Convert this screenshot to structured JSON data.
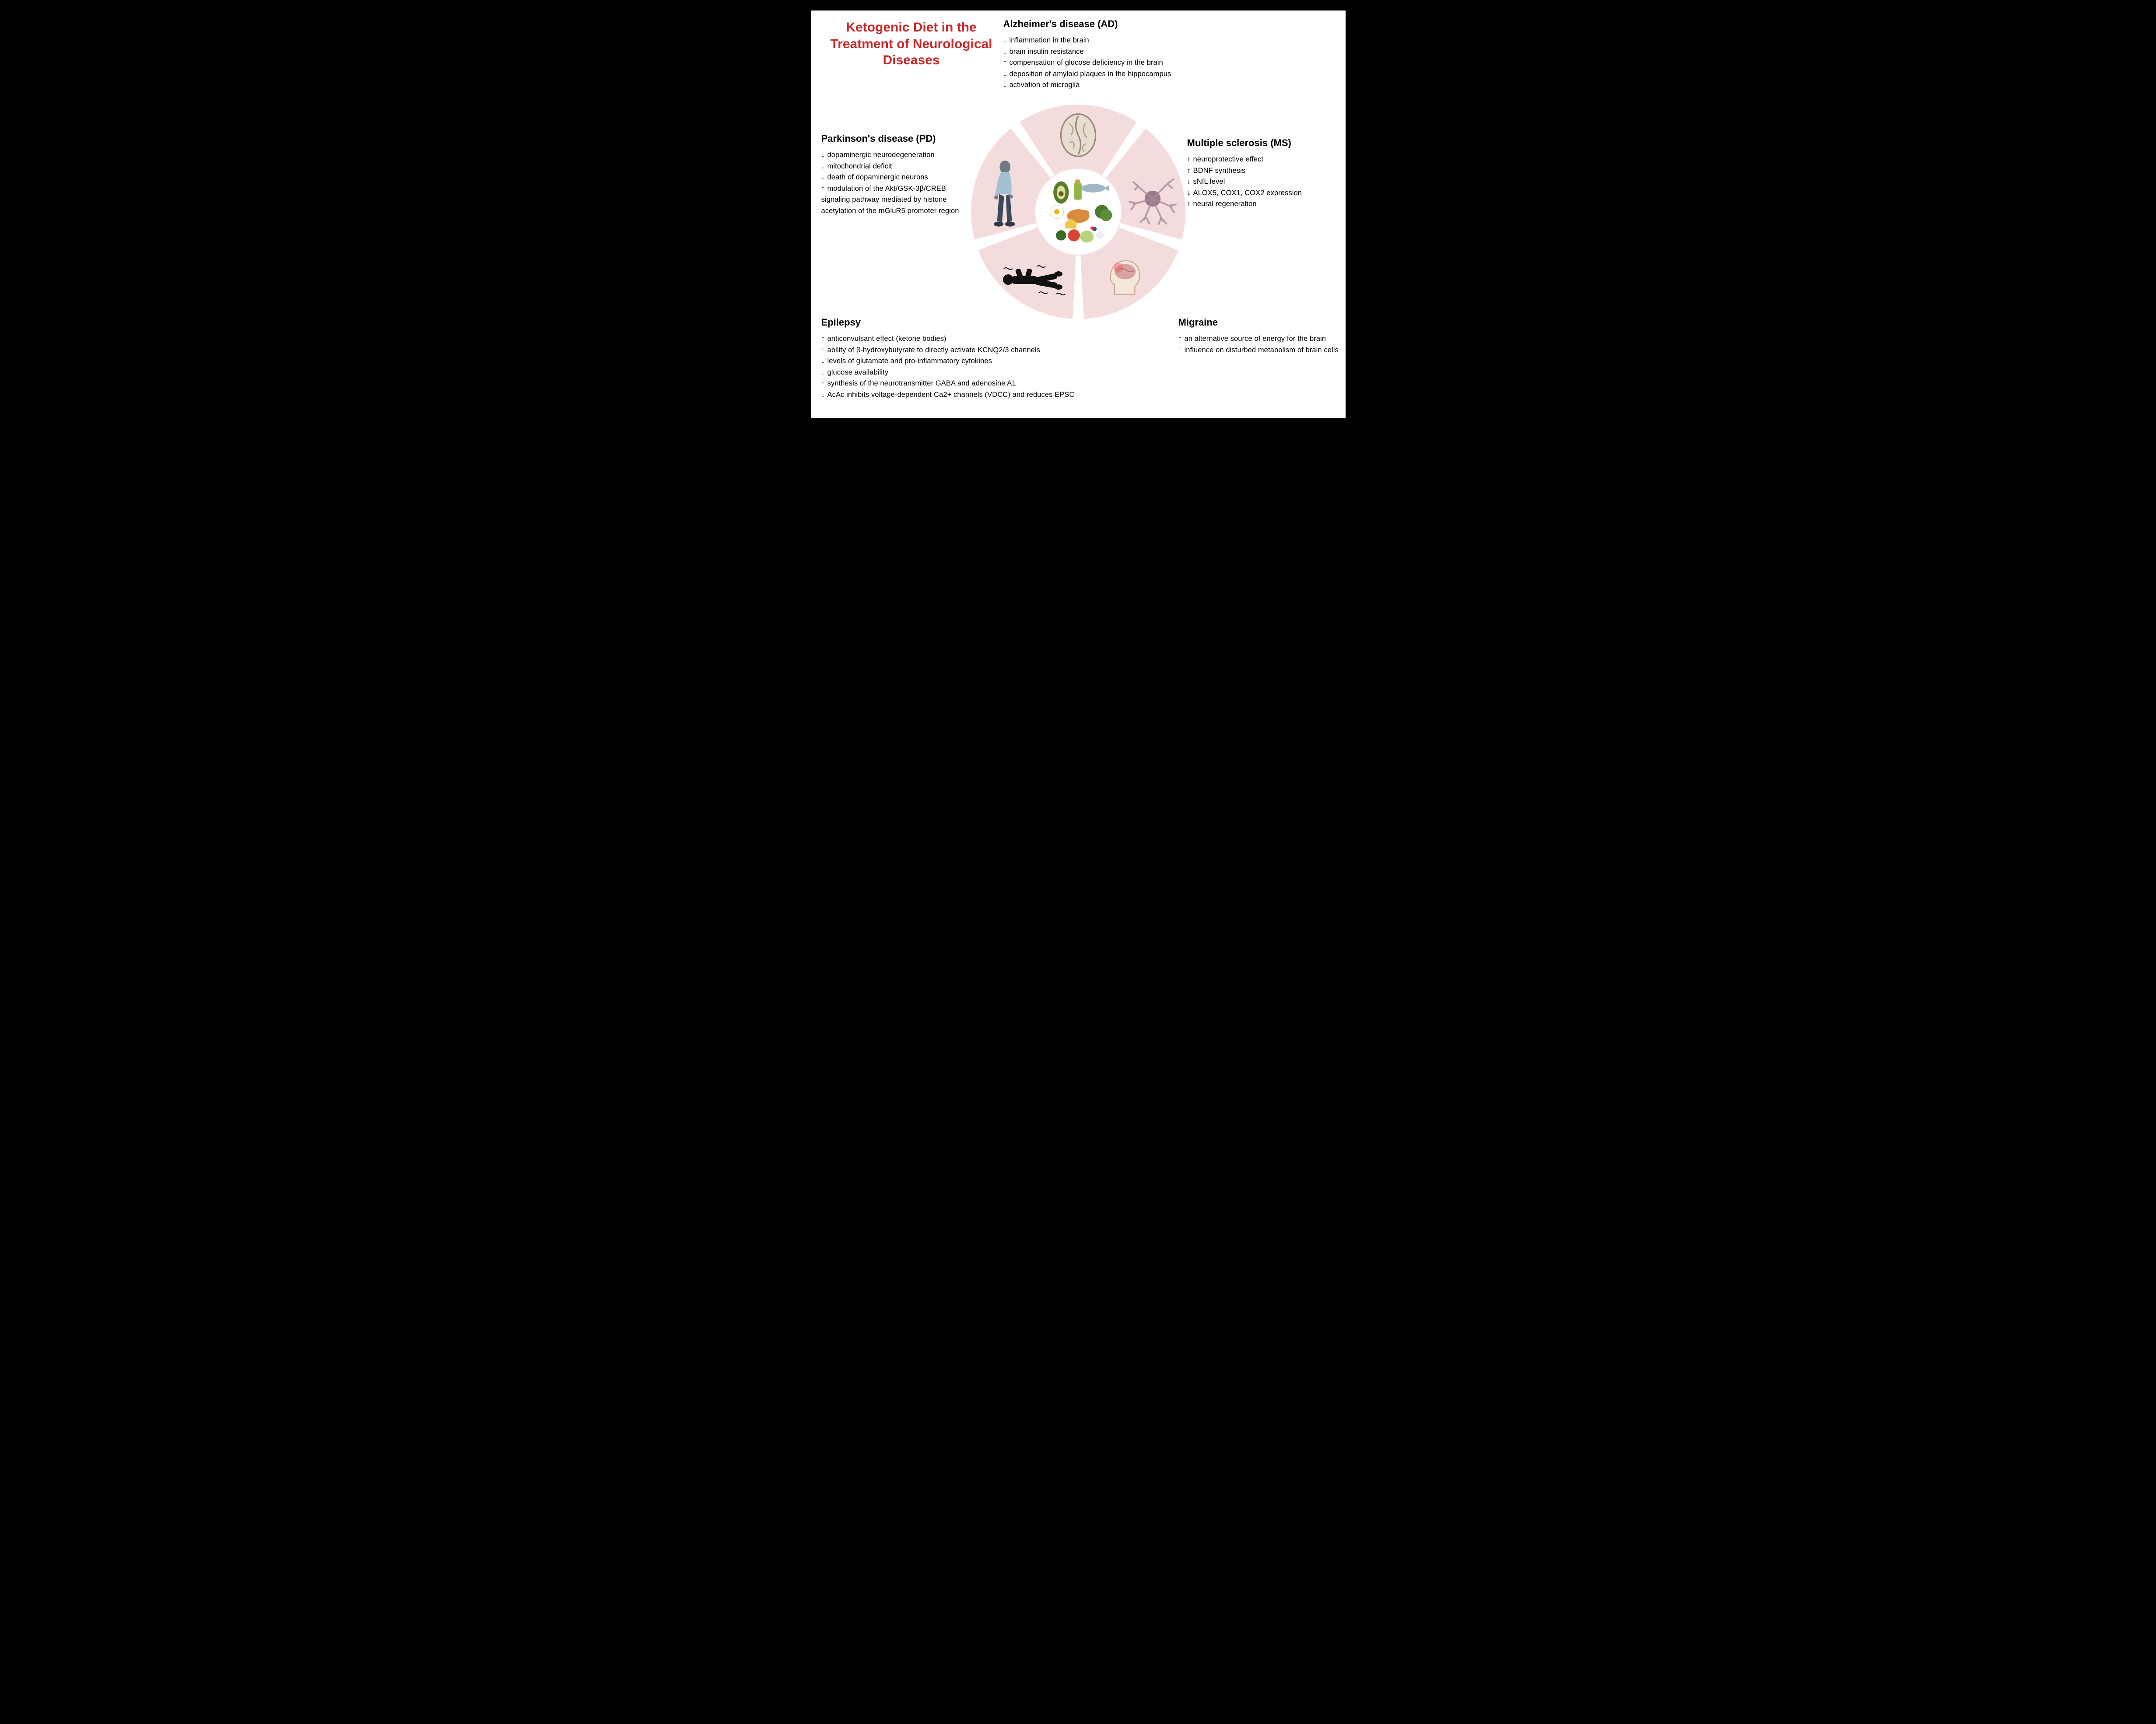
{
  "title": {
    "text": "Ketogenic Diet in the Treatment of Neurological  Diseases",
    "color": "#c62828",
    "fontsize": 30
  },
  "wheel": {
    "segment_fill": "#f4dcdc",
    "gap_color": "#ffffff",
    "center_fill": "#ffffff",
    "outer_radius": 245,
    "inner_radius": 100,
    "gap_deg": 6,
    "segments": 5
  },
  "icons": {
    "brain_slice": "brain-slice-icon",
    "neuron": "neuron-icon",
    "head_brain": "head-brain-icon",
    "seizure_person": "seizure-person-icon",
    "elderly_man": "parkinson-man-icon",
    "food": "keto-food-icon"
  },
  "sections": {
    "alzheimer": {
      "heading": "Alzheimer's disease (AD)",
      "items": [
        {
          "dir": "down",
          "text": "inflammation in the brain"
        },
        {
          "dir": "down",
          "text": "brain insulin resistance"
        },
        {
          "dir": "up",
          "text": "compensation of glucose deficiency in the brain"
        },
        {
          "dir": "down",
          "text": "deposition of amyloid plaques in the hippocampus"
        },
        {
          "dir": "down",
          "text": "activation of microglia"
        }
      ]
    },
    "parkinson": {
      "heading": "Parkinson's disease (PD)",
      "items": [
        {
          "dir": "down",
          "text": "dopaminergic neurodegeneration"
        },
        {
          "dir": "down",
          "text": "mitochondrial deficit"
        },
        {
          "dir": "down",
          "text": "death of dopaminergic neurons"
        },
        {
          "dir": "up",
          "text": "modulation of the Akt/GSK-3β/CREB signaling pathway mediated by histone acetylation of the mGluR5 promoter region"
        }
      ]
    },
    "ms": {
      "heading": "Multiple sclerosis (MS)",
      "items": [
        {
          "dir": "up",
          "text": "neuroprotective effect"
        },
        {
          "dir": "up",
          "text": "BDNF synthesis"
        },
        {
          "dir": "down",
          "text": "sNfL level"
        },
        {
          "dir": "down",
          "text": "ALOX5, COX1, COX2 expression"
        },
        {
          "dir": "up",
          "text": "neural regeneration"
        }
      ]
    },
    "epilepsy": {
      "heading": "Epilepsy",
      "items": [
        {
          "dir": "up",
          "text": "anticonvulsant effect (ketone bodies)"
        },
        {
          "dir": "up",
          "text": "ability of β-hydroxybutyrate to directly activate KCNQ2/3 channels"
        },
        {
          "dir": "down",
          "text": "levels of glutamate and pro-inflammatory cytokines"
        },
        {
          "dir": "down",
          "text": "glucose availability"
        },
        {
          "dir": "up",
          "text": "synthesis of the neurotransmitter GABA and adenosine A1"
        },
        {
          "dir": "down",
          "text": "AcAc inhibits voltage-dependent Ca2+ channels (VDCC) and reduces EPSC"
        }
      ]
    },
    "migraine": {
      "heading": "Migraine",
      "items": [
        {
          "dir": "up",
          "text": "an alternative source of energy for the brain"
        },
        {
          "dir": "up",
          "text": "influence on disturbed metabolism of brain cells"
        }
      ]
    }
  },
  "arrows": {
    "up": "↑",
    "down": "↓"
  },
  "colors": {
    "text": "#111111",
    "heading": "#111111"
  }
}
